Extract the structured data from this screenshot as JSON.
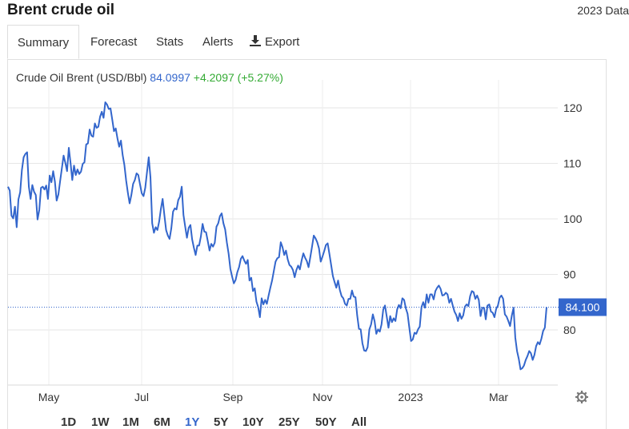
{
  "header": {
    "title": "Brent crude oil",
    "right_text": "2023 Data"
  },
  "tabs": [
    {
      "label": "Summary",
      "active": true
    },
    {
      "label": "Forecast"
    },
    {
      "label": "Stats"
    },
    {
      "label": "Alerts"
    },
    {
      "label": "Export",
      "icon": "download-icon"
    }
  ],
  "legend": {
    "name": "Crude Oil Brent (USD/Bbl)",
    "price": "84.0997",
    "change": "+4.2097 (+5.27%)"
  },
  "current_label": "84.100",
  "ranges": [
    "1D",
    "1W",
    "1M",
    "6M",
    "1Y",
    "5Y",
    "10Y",
    "25Y",
    "50Y",
    "All"
  ],
  "active_range": "1Y",
  "colors": {
    "line": "#3366cc",
    "price": "#3366cc",
    "change": "#33aa33",
    "label_bg": "#3366cc"
  },
  "chart_data": {
    "type": "line",
    "y_ticks": [
      80,
      90,
      100,
      110,
      120
    ],
    "x_ticks": [
      "May",
      "Jul",
      "Sep",
      "Nov",
      "2023",
      "Mar"
    ],
    "ylim": [
      70,
      126
    ],
    "current_value": 84.1,
    "grid": true,
    "series": [
      {
        "values": [
          105.8,
          105.1,
          100.6,
          100.1,
          102.2,
          98.5,
          103.5,
          104.8,
          108.8,
          111.1,
          111.7,
          112.0,
          105.8,
          103.6,
          106.1,
          104.9,
          104.3,
          99.9,
          101.6,
          105.6,
          105.8,
          105.3,
          106.0,
          103.6,
          107.8,
          106.6,
          108.6,
          106.7,
          103.3,
          104.4,
          106.8,
          109.1,
          111.4,
          110.1,
          108.6,
          112.8,
          110.1,
          107.0,
          109.6,
          107.9,
          108.9,
          108.1,
          108.5,
          109.9,
          110.2,
          113.4,
          113.6,
          116.1,
          115.0,
          114.8,
          117.2,
          116.4,
          116.6,
          118.4,
          119.3,
          118.2,
          121.0,
          120.6,
          119.8,
          119.9,
          117.9,
          115.8,
          116.3,
          114.5,
          113.0,
          114.1,
          111.5,
          109.7,
          106.9,
          104.7,
          102.8,
          104.3,
          106.3,
          107.0,
          108.2,
          107.9,
          106.2,
          104.6,
          104.1,
          105.6,
          108.4,
          111.1,
          107.5,
          99.2,
          97.5,
          98.5,
          98.0,
          99.5,
          101.8,
          103.6,
          100.7,
          98.0,
          97.0,
          96.4,
          98.3,
          101.3,
          101.9,
          101.7,
          103.4,
          104.0,
          105.8,
          100.7,
          98.6,
          96.6,
          98.4,
          98.9,
          96.3,
          94.8,
          93.5,
          95.2,
          95.2,
          96.8,
          99.1,
          97.7,
          97.6,
          96.0,
          94.3,
          95.5,
          95.0,
          95.7,
          98.6,
          99.2,
          100.5,
          101.0,
          99.2,
          98.1,
          95.7,
          93.7,
          91.0,
          89.6,
          88.4,
          89.0,
          90.4,
          91.3,
          92.8,
          93.3,
          92.5,
          91.9,
          92.6,
          88.9,
          89.4,
          87.0,
          87.5,
          85.1,
          84.1,
          82.3,
          85.7,
          84.6,
          85.4,
          84.7,
          86.2,
          87.6,
          88.9,
          90.6,
          92.3,
          92.9,
          93.1,
          95.8,
          94.9,
          93.5,
          94.3,
          92.7,
          91.7,
          91.4,
          90.8,
          89.5,
          90.8,
          91.6,
          90.9,
          92.5,
          93.8,
          93.0,
          92.4,
          91.3,
          93.1,
          95.0,
          97.0,
          96.5,
          95.8,
          94.7,
          92.3,
          93.2,
          94.2,
          95.3,
          95.6,
          93.7,
          91.7,
          89.7,
          88.6,
          87.6,
          88.9,
          87.2,
          86.1,
          85.7,
          84.7,
          84.4,
          85.6,
          85.6,
          87.1,
          86.0,
          85.9,
          82.6,
          80.2,
          80.1,
          77.6,
          76.3,
          76.2,
          76.9,
          80.1,
          81.0,
          82.8,
          81.6,
          79.3,
          80.1,
          79.7,
          81.0,
          83.7,
          84.4,
          82.4,
          80.4,
          82.5,
          81.4,
          82.1,
          81.6,
          83.7,
          84.5,
          83.9,
          85.7,
          85.4,
          83.9,
          82.9,
          80.4,
          78.0,
          78.3,
          79.5,
          79.3,
          80.1,
          80.6,
          84.1,
          85.0,
          84.0,
          86.4,
          84.9,
          86.4,
          86.4,
          85.5,
          87.0,
          87.6,
          88.0,
          87.4,
          86.2,
          86.3,
          86.7,
          86.4,
          84.9,
          85.6,
          84.4,
          83.3,
          82.7,
          81.6,
          83.0,
          82.0,
          82.6,
          84.2,
          84.6,
          84.3,
          86.1,
          87.0,
          86.8,
          85.6,
          86.2,
          85.4,
          82.5,
          84.0,
          84.0,
          81.9,
          84.4,
          84.6,
          83.3,
          83.1,
          82.3,
          83.8,
          84.4,
          85.8,
          86.2,
          85.6,
          82.8,
          82.4,
          81.6,
          80.7,
          82.6,
          84.0,
          78.6,
          76.2,
          74.8,
          72.9,
          73.1,
          73.6,
          74.6,
          75.3,
          76.2,
          75.8,
          74.6,
          75.5,
          77.1,
          77.8,
          77.4,
          78.4,
          79.8,
          80.4,
          84.1
        ]
      }
    ]
  }
}
